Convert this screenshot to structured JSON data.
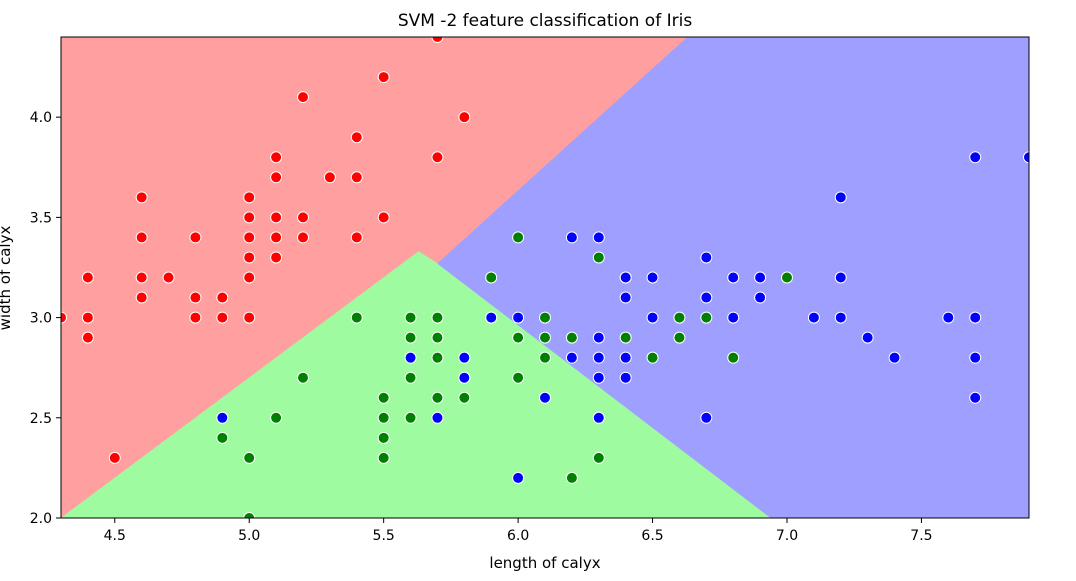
{
  "chart_data": {
    "type": "scatter",
    "title": "SVM -2 feature classification of Iris",
    "xlabel": "length of calyx",
    "ylabel": "width of calyx",
    "xlim": [
      4.3,
      7.9
    ],
    "ylim": [
      2.0,
      4.4
    ],
    "xticks": [
      "4.5",
      "5.0",
      "5.5",
      "6.0",
      "6.5",
      "7.0",
      "7.5"
    ],
    "xtick_values": [
      4.5,
      5.0,
      5.5,
      6.0,
      6.5,
      7.0,
      7.5
    ],
    "yticks": [
      "2.0",
      "2.5",
      "3.0",
      "3.5",
      "4.0"
    ],
    "ytick_values": [
      2.0,
      2.5,
      3.0,
      3.5,
      4.0
    ],
    "grid": false,
    "legend": "none",
    "colors": {
      "region_red": "#ff9f9f",
      "region_green": "#9ffb9f",
      "region_blue": "#9f9fff",
      "red": "#ff0000",
      "green": "#008000",
      "blue": "#0000ff"
    },
    "regions": [
      {
        "color": "region_red",
        "polygon": [
          [
            4.3,
            2.0
          ],
          [
            4.3,
            4.4
          ],
          [
            6.63,
            4.4
          ],
          [
            5.7,
            3.27
          ],
          [
            5.63,
            3.33
          ],
          [
            4.3,
            2.0
          ]
        ]
      },
      {
        "color": "region_green",
        "polygon": [
          [
            4.3,
            2.0
          ],
          [
            5.63,
            3.33
          ],
          [
            5.7,
            3.27
          ],
          [
            6.94,
            2.0
          ]
        ]
      },
      {
        "color": "region_blue",
        "polygon": [
          [
            5.7,
            3.27
          ],
          [
            6.63,
            4.4
          ],
          [
            7.9,
            4.4
          ],
          [
            7.9,
            2.0
          ],
          [
            6.94,
            2.0
          ]
        ]
      }
    ],
    "series": [
      {
        "color": "red",
        "points": [
          [
            4.3,
            3.0
          ],
          [
            4.4,
            3.2
          ],
          [
            4.4,
            3.0
          ],
          [
            4.4,
            2.9
          ],
          [
            4.5,
            2.3
          ],
          [
            4.6,
            3.6
          ],
          [
            4.6,
            3.4
          ],
          [
            4.6,
            3.2
          ],
          [
            4.6,
            3.1
          ],
          [
            4.7,
            3.2
          ],
          [
            4.8,
            3.4
          ],
          [
            4.8,
            3.1
          ],
          [
            4.8,
            3.0
          ],
          [
            4.9,
            3.1
          ],
          [
            4.9,
            3.0
          ],
          [
            5.0,
            3.6
          ],
          [
            5.0,
            3.5
          ],
          [
            5.0,
            3.4
          ],
          [
            5.0,
            3.3
          ],
          [
            5.0,
            3.2
          ],
          [
            5.0,
            3.0
          ],
          [
            5.1,
            3.8
          ],
          [
            5.1,
            3.7
          ],
          [
            5.1,
            3.5
          ],
          [
            5.1,
            3.4
          ],
          [
            5.1,
            3.3
          ],
          [
            5.2,
            4.1
          ],
          [
            5.2,
            3.5
          ],
          [
            5.2,
            3.4
          ],
          [
            5.3,
            3.7
          ],
          [
            5.4,
            3.9
          ],
          [
            5.4,
            3.7
          ],
          [
            5.4,
            3.4
          ],
          [
            5.5,
            4.2
          ],
          [
            5.5,
            3.5
          ],
          [
            5.7,
            4.4
          ],
          [
            5.7,
            3.8
          ],
          [
            5.8,
            4.0
          ]
        ]
      },
      {
        "color": "green",
        "points": [
          [
            4.9,
            2.4
          ],
          [
            5.0,
            2.3
          ],
          [
            5.0,
            2.0
          ],
          [
            5.1,
            2.5
          ],
          [
            5.2,
            2.7
          ],
          [
            5.4,
            3.0
          ],
          [
            5.5,
            2.6
          ],
          [
            5.5,
            2.5
          ],
          [
            5.5,
            2.4
          ],
          [
            5.5,
            2.3
          ],
          [
            5.6,
            3.0
          ],
          [
            5.6,
            2.9
          ],
          [
            5.6,
            2.7
          ],
          [
            5.6,
            2.5
          ],
          [
            5.7,
            3.0
          ],
          [
            5.7,
            2.9
          ],
          [
            5.7,
            2.8
          ],
          [
            5.7,
            2.6
          ],
          [
            5.8,
            2.7
          ],
          [
            5.8,
            2.6
          ],
          [
            5.9,
            3.2
          ],
          [
            5.9,
            3.0
          ],
          [
            6.0,
            3.4
          ],
          [
            6.0,
            2.9
          ],
          [
            6.0,
            2.7
          ],
          [
            6.1,
            3.0
          ],
          [
            6.1,
            2.9
          ],
          [
            6.1,
            2.8
          ],
          [
            6.2,
            2.9
          ],
          [
            6.2,
            2.2
          ],
          [
            6.3,
            3.3
          ],
          [
            6.3,
            2.5
          ],
          [
            6.3,
            2.3
          ],
          [
            6.4,
            3.2
          ],
          [
            6.4,
            2.9
          ],
          [
            6.5,
            2.8
          ],
          [
            6.6,
            3.0
          ],
          [
            6.6,
            2.9
          ],
          [
            6.7,
            3.0
          ],
          [
            6.8,
            2.8
          ],
          [
            7.0,
            3.2
          ]
        ]
      },
      {
        "color": "blue",
        "points": [
          [
            4.9,
            2.5
          ],
          [
            5.6,
            2.8
          ],
          [
            5.7,
            2.5
          ],
          [
            5.8,
            2.8
          ],
          [
            5.8,
            2.7
          ],
          [
            5.9,
            3.0
          ],
          [
            6.0,
            3.0
          ],
          [
            6.0,
            2.2
          ],
          [
            6.1,
            2.6
          ],
          [
            6.2,
            3.4
          ],
          [
            6.2,
            2.8
          ],
          [
            6.3,
            3.4
          ],
          [
            6.3,
            2.9
          ],
          [
            6.3,
            2.8
          ],
          [
            6.3,
            2.7
          ],
          [
            6.3,
            2.5
          ],
          [
            6.4,
            3.2
          ],
          [
            6.4,
            3.1
          ],
          [
            6.4,
            2.8
          ],
          [
            6.4,
            2.7
          ],
          [
            6.5,
            3.2
          ],
          [
            6.5,
            3.0
          ],
          [
            6.7,
            3.3
          ],
          [
            6.7,
            3.1
          ],
          [
            6.7,
            2.5
          ],
          [
            6.8,
            3.2
          ],
          [
            6.8,
            3.0
          ],
          [
            6.9,
            3.2
          ],
          [
            6.9,
            3.1
          ],
          [
            7.1,
            3.0
          ],
          [
            7.2,
            3.6
          ],
          [
            7.2,
            3.2
          ],
          [
            7.2,
            3.0
          ],
          [
            7.3,
            2.9
          ],
          [
            7.4,
            2.8
          ],
          [
            7.6,
            3.0
          ],
          [
            7.7,
            3.8
          ],
          [
            7.7,
            3.0
          ],
          [
            7.7,
            2.8
          ],
          [
            7.7,
            2.6
          ],
          [
            7.9,
            3.8
          ]
        ]
      }
    ]
  }
}
